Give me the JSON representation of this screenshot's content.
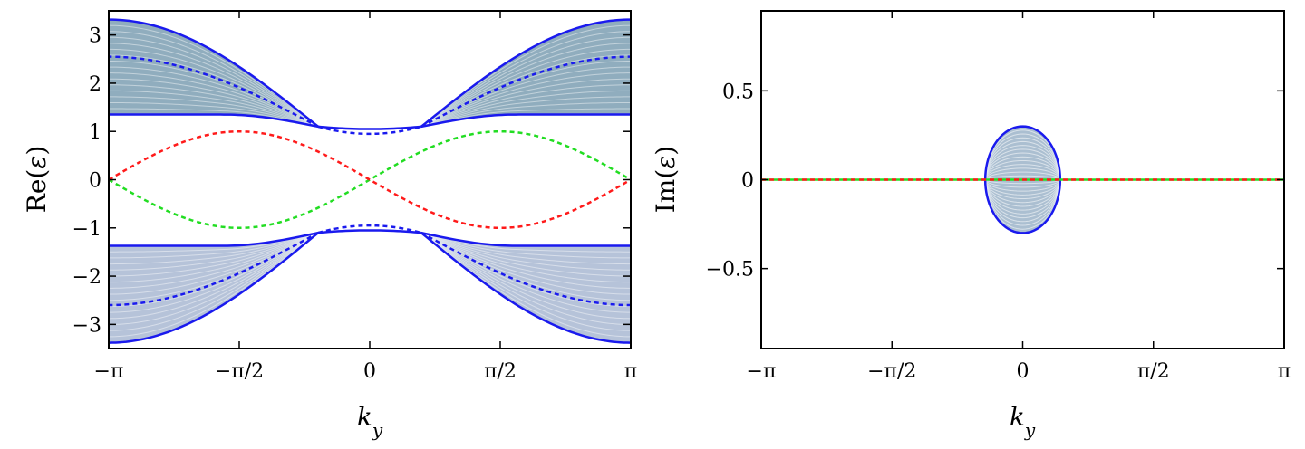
{
  "chart_data": [
    {
      "type": "line",
      "xlabel": "k_y",
      "ylabel": "Re(ε)",
      "xlim": [
        -3.14159,
        3.14159
      ],
      "ylim": [
        -3.5,
        3.5
      ],
      "xticks": [
        {
          "value": -3.14159,
          "label": "−π"
        },
        {
          "value": -1.5708,
          "label": "−π/2"
        },
        {
          "value": 0,
          "label": "0"
        },
        {
          "value": 1.5708,
          "label": "π/2"
        },
        {
          "value": 3.14159,
          "label": "π"
        }
      ],
      "yticks": [
        {
          "value": -3,
          "label": "−3"
        },
        {
          "value": -2,
          "label": "−2"
        },
        {
          "value": -1,
          "label": "−1"
        },
        {
          "value": 0,
          "label": "0"
        },
        {
          "value": 1,
          "label": "1"
        },
        {
          "value": 2,
          "label": "2"
        },
        {
          "value": 3,
          "label": "3"
        }
      ],
      "bulk_band_edges": {
        "upper_outer": {
          "at_ky_0": 1.05,
          "at_ky_pi": 3.32
        },
        "upper_inner": {
          "at_ky_0": 0.95,
          "at_ky_pi": 1.35
        },
        "lower_outer": {
          "at_ky_0": -1.05,
          "at_ky_pi": -3.38
        },
        "lower_inner": {
          "at_ky_0": -0.95,
          "at_ky_pi": -1.37
        },
        "gap_closing_ky": 0.62
      },
      "series": [
        {
          "style": "dashed",
          "color": "#ff1a1a",
          "x": [
            -3.14159,
            -1.5708,
            0,
            1.5708,
            3.14159
          ],
          "y": [
            0,
            1,
            0,
            -1,
            0
          ]
        },
        {
          "style": "dashed",
          "color": "#22dd22",
          "x": [
            -3.14159,
            -1.5708,
            0,
            1.5708,
            3.14159
          ],
          "y": [
            0,
            -1,
            0,
            1,
            0
          ]
        },
        {
          "style": "dashed",
          "color": "#1a1aee",
          "x": [
            -3.14159,
            -0.62,
            0,
            0.62,
            3.14159
          ],
          "y": [
            2.55,
            1.1,
            0.98,
            1.1,
            2.55
          ]
        },
        {
          "style": "dashed",
          "color": "#1a1aee",
          "x": [
            -3.14159,
            -0.62,
            0,
            0.62,
            3.14159
          ],
          "y": [
            -2.6,
            -1.1,
            -0.98,
            -1.1,
            -2.6
          ]
        }
      ]
    },
    {
      "type": "line",
      "xlabel": "k_y",
      "ylabel": "Im(ε)",
      "xlim": [
        -3.14159,
        3.14159
      ],
      "ylim": [
        -0.95,
        0.95
      ],
      "xticks": [
        {
          "value": -3.14159,
          "label": "−π"
        },
        {
          "value": -1.5708,
          "label": "−π/2"
        },
        {
          "value": 0,
          "label": "0"
        },
        {
          "value": 1.5708,
          "label": "π/2"
        },
        {
          "value": 3.14159,
          "label": "π"
        }
      ],
      "yticks": [
        {
          "value": -0.5,
          "label": "−0.5"
        },
        {
          "value": 0,
          "label": "0"
        },
        {
          "value": 0.5,
          "label": "0.5"
        }
      ],
      "imaginary_lobe": {
        "ky_range": [
          -0.45,
          0.45
        ],
        "max": 0.3,
        "min": -0.3
      },
      "series": [
        {
          "style": "solid",
          "color": "#22dd22",
          "x": [
            -3.14159,
            3.14159
          ],
          "y": [
            0,
            0
          ]
        },
        {
          "style": "dashed",
          "color": "#ff1a1a",
          "x": [
            -3.14159,
            3.14159
          ],
          "y": [
            0,
            0
          ]
        }
      ]
    }
  ]
}
